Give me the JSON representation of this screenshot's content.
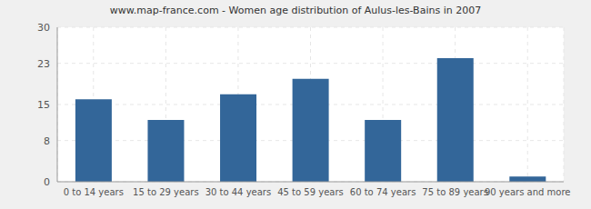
{
  "chart_data": {
    "type": "bar",
    "title": "www.map-france.com - Women age distribution of Aulus-les-Bains in 2007",
    "categories": [
      "0 to 14 years",
      "15 to 29 years",
      "30 to 44 years",
      "45 to 59 years",
      "60 to 74 years",
      "75 to 89 years",
      "90 years and more"
    ],
    "values": [
      16,
      12,
      17,
      20,
      12,
      24,
      1
    ],
    "color": "#336699",
    "ylim": [
      0,
      30
    ],
    "yticks": [
      0,
      8,
      15,
      23,
      30
    ],
    "grid": true
  }
}
